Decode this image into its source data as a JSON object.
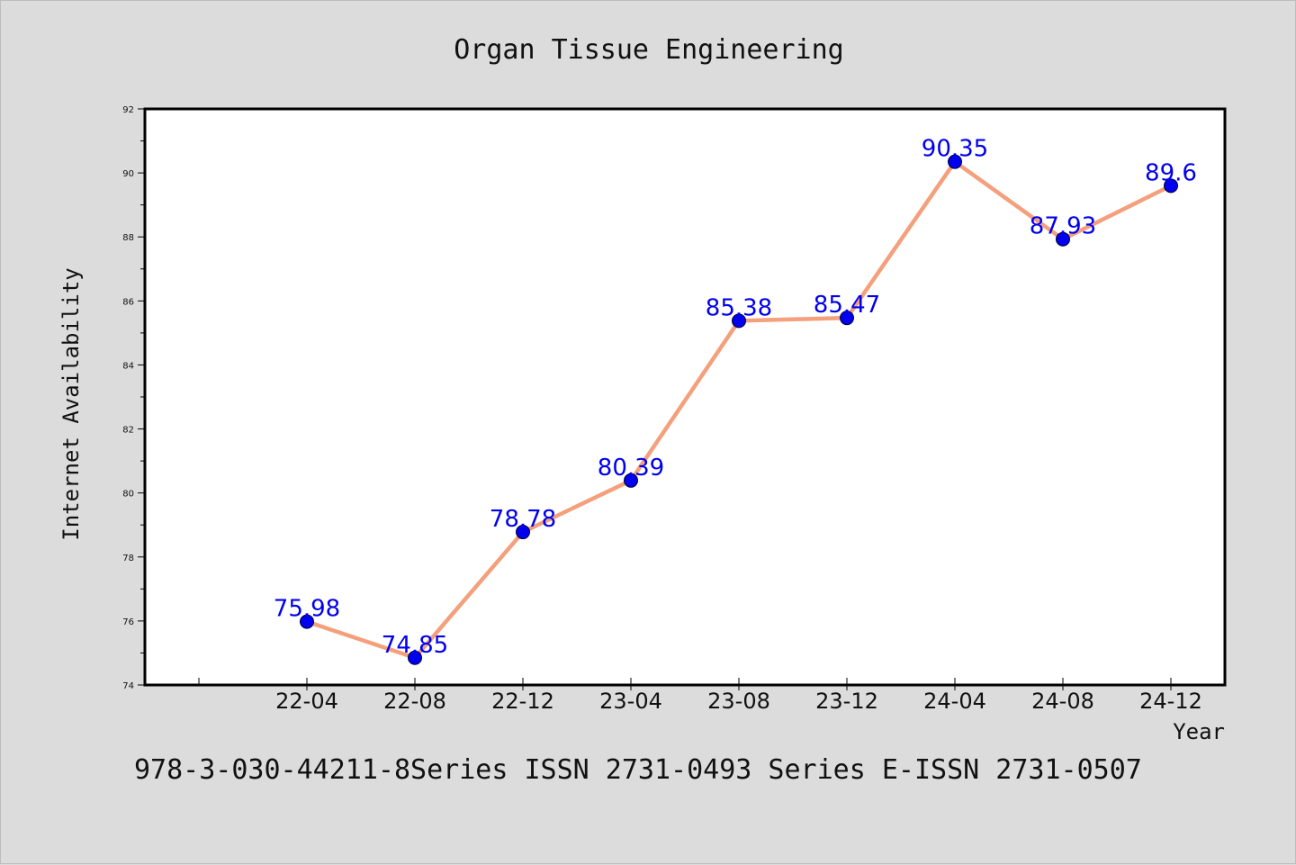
{
  "chart_data": {
    "type": "line",
    "title": "Organ Tissue Engineering",
    "xlabel": "Year",
    "ylabel": "Internet Availability",
    "categories": [
      "22-04",
      "22-08",
      "22-12",
      "23-04",
      "23-08",
      "23-12",
      "24-04",
      "24-08",
      "24-12"
    ],
    "series": [
      {
        "values": [
          75.98,
          74.85,
          78.78,
          80.39,
          85.38,
          85.47,
          90.35,
          87.93,
          89.6
        ]
      }
    ],
    "data_labels": [
      "75.98",
      "74.85",
      "78.78",
      "80.39",
      "85.38",
      "85.47",
      "90.35",
      "87.93",
      "89.6"
    ],
    "ylim": [
      74,
      92
    ],
    "yticks": [
      74,
      76,
      78,
      80,
      82,
      84,
      86,
      88,
      90,
      92
    ],
    "grid": false,
    "legend": "none",
    "line_color": "#f4a07c",
    "marker_color": "#0000ee",
    "label_color": "#0000ee"
  },
  "footer_text": "978-3-030-44211-8Series ISSN 2731-0493 Series E-ISSN 2731-0507"
}
